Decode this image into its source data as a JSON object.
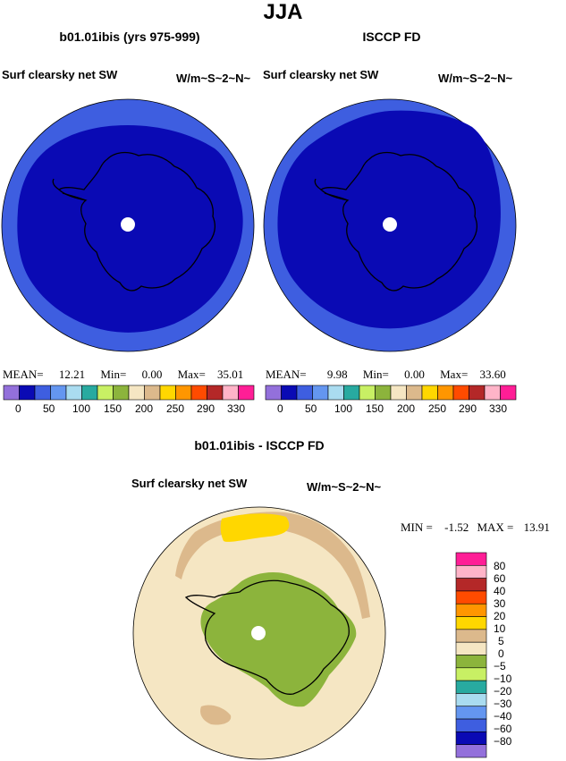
{
  "figure": {
    "season_title": "JJA"
  },
  "colors": {
    "deep_blue": "#0a0ab4",
    "medium_blue": "#3e5ee0",
    "light_tan": "#f5e6c3",
    "tan": "#dcb98c",
    "yellow": "#ffd700",
    "olive_green": "#8cb43c",
    "coast_line": "#000000",
    "pole_cap": "#ffffff"
  },
  "panels": [
    {
      "title": "b01.01ibis (yrs 975-999)",
      "variable_label": "Surf clearsky net SW",
      "units_label": "W/m~S~2~N~",
      "stats": {
        "mean_label": "MEAN=",
        "mean": "12.21",
        "min_label": "Min=",
        "min": "0.00",
        "max_label": "Max=",
        "max": "35.01"
      }
    },
    {
      "title": "ISCCP FD",
      "variable_label": "Surf clearsky net SW",
      "units_label": "W/m~S~2~N~",
      "stats": {
        "mean_label": "MEAN=",
        "mean": "9.98",
        "min_label": "Min=",
        "min": "0.00",
        "max_label": "Max=",
        "max": "33.60"
      }
    }
  ],
  "top_colorbar": {
    "colors": [
      "#9370db",
      "#0a0ab4",
      "#3e5ee0",
      "#6496f0",
      "#aadcf0",
      "#28aaa0",
      "#c8f064",
      "#8cb43c",
      "#f5e6c3",
      "#dcb98c",
      "#ffd700",
      "#ff9600",
      "#ff4b00",
      "#b42828",
      "#ffb4c8",
      "#ff1e96"
    ],
    "tick_labels": [
      "0",
      "50",
      "100",
      "150",
      "200",
      "250",
      "290",
      "330"
    ]
  },
  "difference": {
    "title": "b01.01ibis - ISCCP FD",
    "variable_label": "Surf clearsky net SW",
    "units_label": "W/m~S~2~N~",
    "stats": {
      "min_label": "MIN =",
      "min": "-1.52",
      "max_label": "MAX =",
      "max": "13.91"
    },
    "colorbar": {
      "colors_top_to_bottom": [
        "#ff1e96",
        "#ffb4c8",
        "#b42828",
        "#ff4b00",
        "#ff9600",
        "#ffd700",
        "#dcb98c",
        "#f5e6c3",
        "#8cb43c",
        "#c8f064",
        "#28aaa0",
        "#aadcf0",
        "#6496f0",
        "#3e5ee0",
        "#0a0ab4",
        "#9370db"
      ],
      "labels_top_to_bottom": [
        "80",
        "60",
        "40",
        "30",
        "20",
        "10",
        "5",
        "0",
        "−5",
        "−10",
        "−20",
        "−30",
        "−40",
        "−60",
        "−80"
      ]
    }
  }
}
